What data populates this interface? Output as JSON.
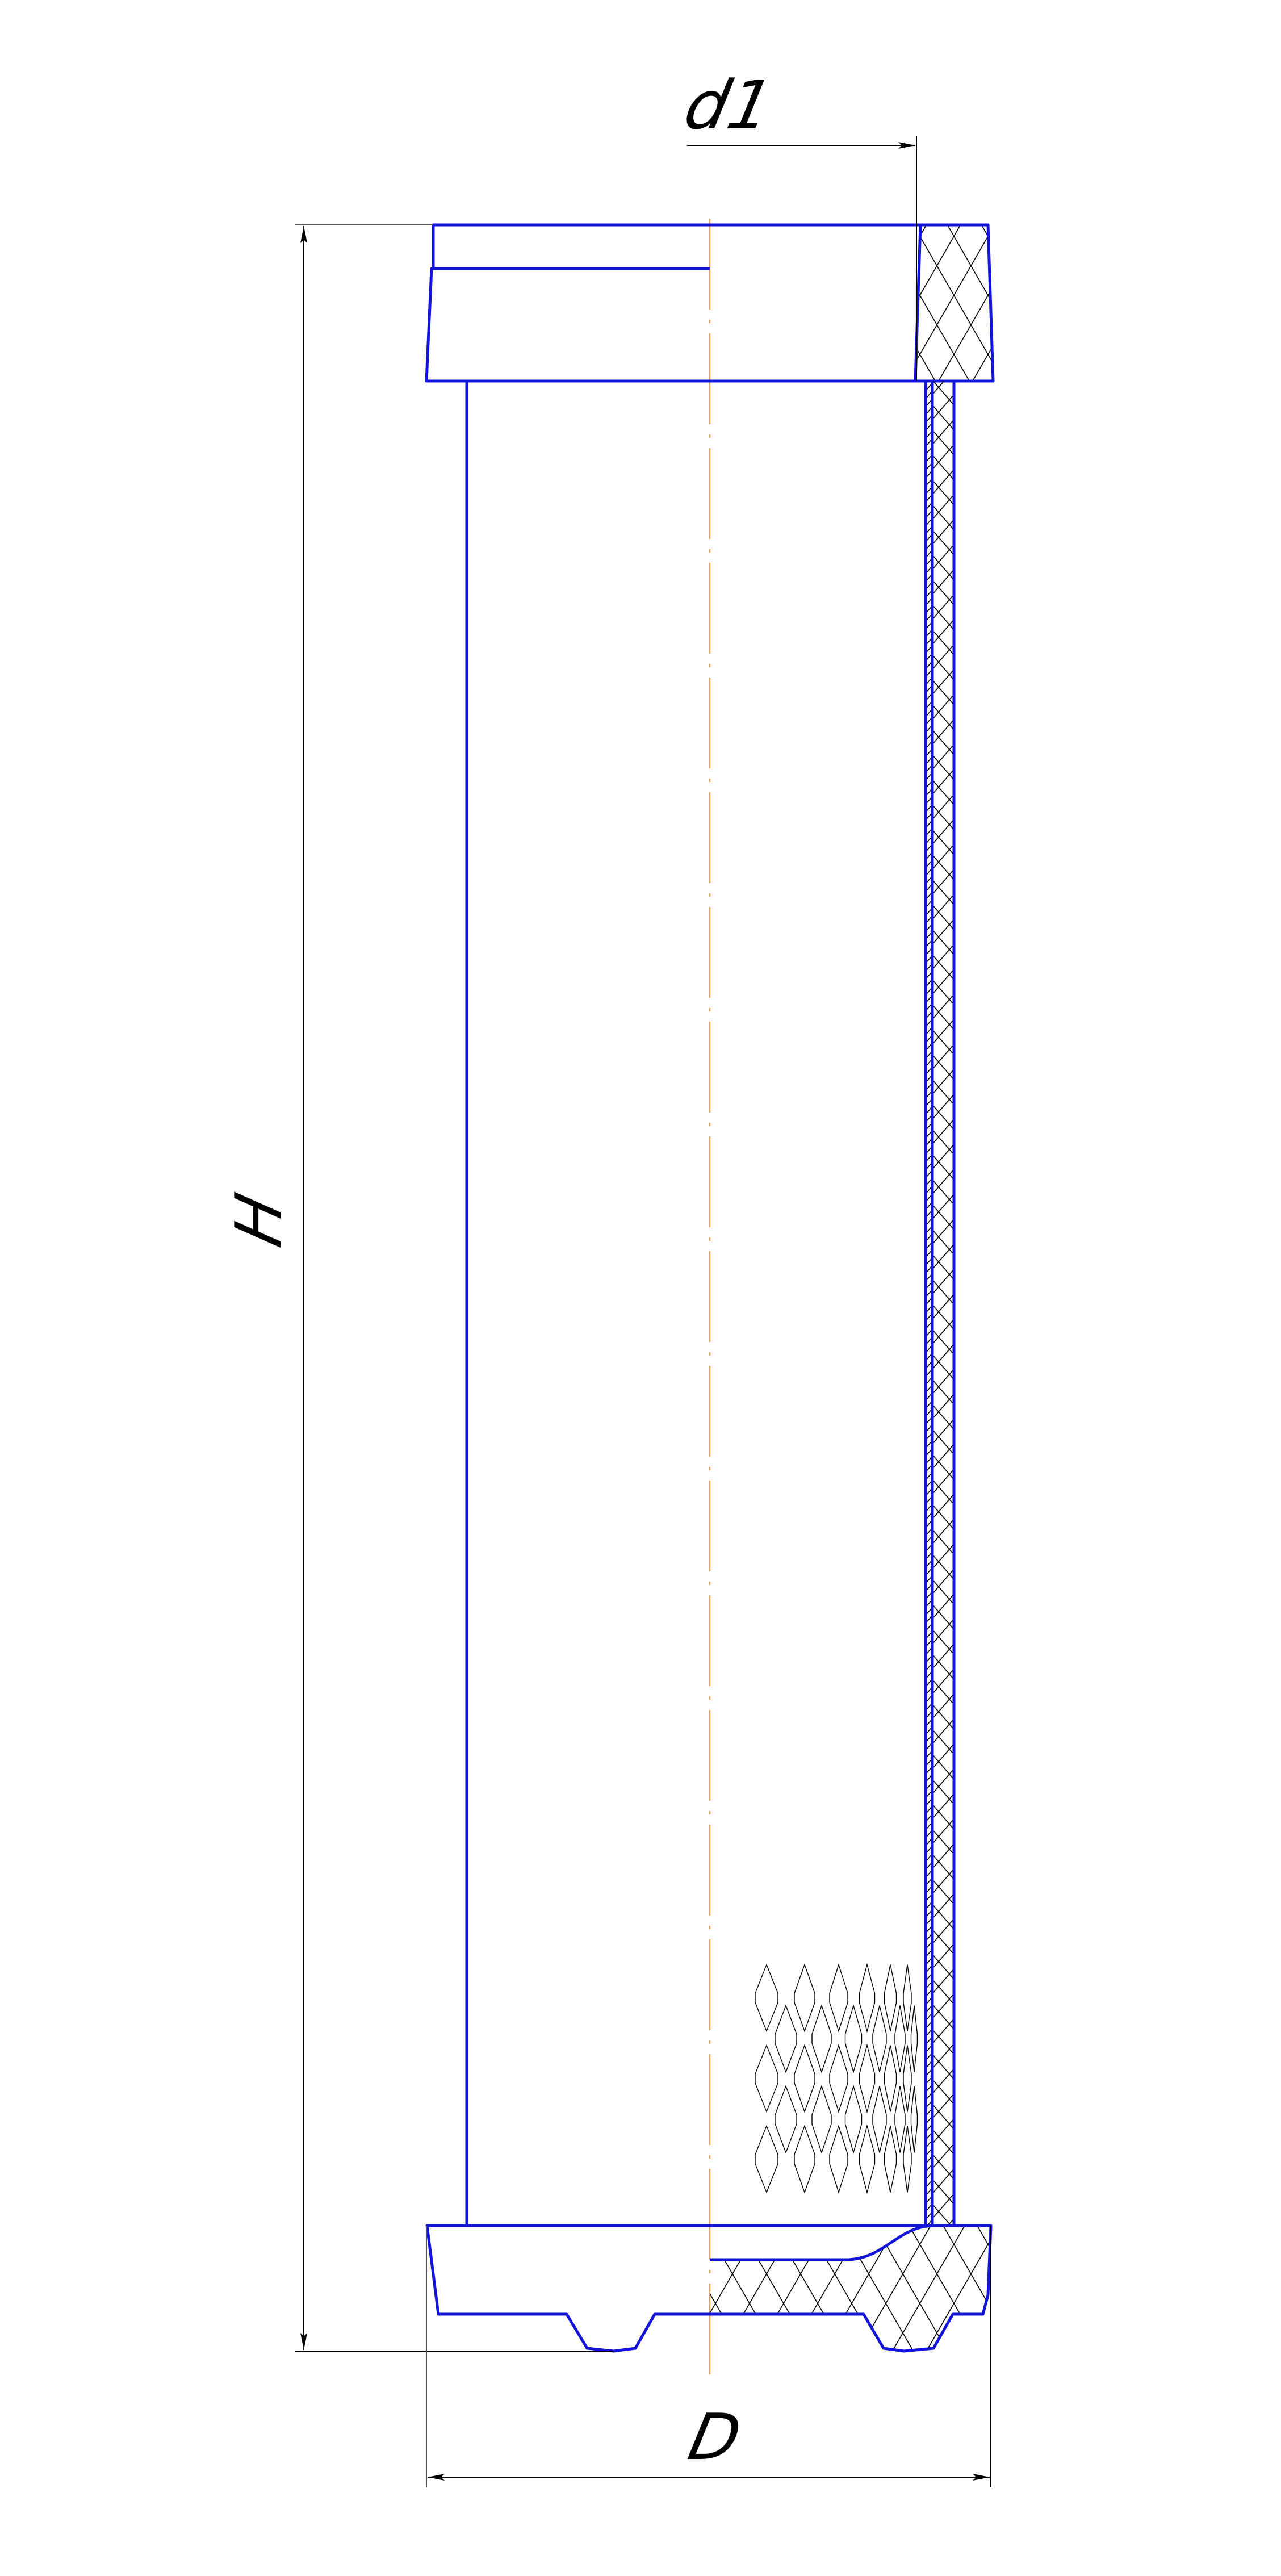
{
  "drawing": {
    "dimensions": {
      "outlet_diameter_label": "d1",
      "height_label": "H",
      "outer_diameter_label": "D"
    },
    "colors": {
      "outline": "#1414d8",
      "centerline": "#e0a060",
      "dimension": "#000000",
      "hatch": "#000000"
    }
  }
}
